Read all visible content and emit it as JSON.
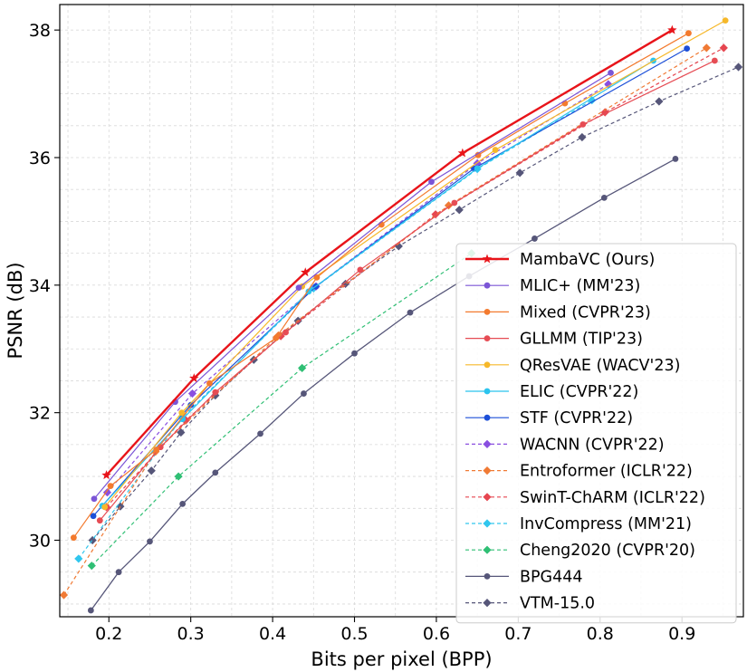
{
  "chart_data": {
    "type": "line",
    "title": "",
    "xlabel": "Bits per pixel (BPP)",
    "ylabel": "PSNR (dB)",
    "xlim": [
      0.14,
      0.975
    ],
    "ylim": [
      28.8,
      38.4
    ],
    "xticks": [
      0.2,
      0.3,
      0.4,
      0.5,
      0.6,
      0.7,
      0.8,
      0.9
    ],
    "xtick_labels": [
      "0.2",
      "0.3",
      "0.4",
      "0.5",
      "0.6",
      "0.7",
      "0.8",
      "0.9"
    ],
    "yticks": [
      30,
      32,
      34,
      36,
      38
    ],
    "ytick_labels": [
      "30",
      "32",
      "34",
      "36",
      "38"
    ],
    "grid": true,
    "legend_position": "lower-right",
    "series": [
      {
        "name": "MambaVC (Ours)",
        "color": "#e8141a",
        "marker": "star",
        "dashed": false,
        "width": 2.4,
        "x": [
          0.197,
          0.304,
          0.44,
          0.632,
          0.888
        ],
        "y": [
          31.02,
          32.54,
          34.2,
          36.07,
          38.0
        ]
      },
      {
        "name": "MLIC+ (MM'23)",
        "color": "#7b55d6",
        "marker": "circle",
        "dashed": false,
        "width": 1.2,
        "x": [
          0.182,
          0.281,
          0.432,
          0.594,
          0.813
        ],
        "y": [
          30.65,
          32.17,
          33.96,
          35.62,
          37.33
        ]
      },
      {
        "name": "Mixed (CVPR'23)",
        "color": "#f37a2e",
        "marker": "circle",
        "dashed": false,
        "width": 1.2,
        "x": [
          0.157,
          0.202,
          0.258,
          0.323,
          0.404,
          0.454,
          0.533,
          0.651,
          0.757,
          0.908
        ],
        "y": [
          30.04,
          30.85,
          31.42,
          32.46,
          33.17,
          34.12,
          34.95,
          36.04,
          36.85,
          37.95
        ]
      },
      {
        "name": "GLLMM (TIP'23)",
        "color": "#e64c54",
        "marker": "circle",
        "dashed": false,
        "width": 1.2,
        "x": [
          0.189,
          0.263,
          0.33,
          0.416,
          0.507,
          0.622,
          0.779,
          0.94
        ],
        "y": [
          30.31,
          31.46,
          32.32,
          33.26,
          34.24,
          35.29,
          36.52,
          37.52
        ]
      },
      {
        "name": "QResVAE (WACV'23)",
        "color": "#f6b82a",
        "marker": "circle",
        "dashed": false,
        "width": 1.2,
        "x": [
          0.195,
          0.289,
          0.436,
          0.672,
          0.953
        ],
        "y": [
          30.52,
          32.0,
          33.98,
          36.12,
          38.15
        ]
      },
      {
        "name": "ELIC (CVPR'22)",
        "color": "#2bc4ee",
        "marker": "circle",
        "dashed": false,
        "width": 1.2,
        "x": [
          0.192,
          0.29,
          0.444,
          0.65,
          0.865
        ],
        "y": [
          30.54,
          31.9,
          33.9,
          35.83,
          37.52
        ]
      },
      {
        "name": "STF (CVPR'22)",
        "color": "#1c4fd8",
        "marker": "circle",
        "dashed": false,
        "width": 1.2,
        "x": [
          0.181,
          0.3,
          0.453,
          0.646,
          0.906
        ],
        "y": [
          30.38,
          32.12,
          33.98,
          35.83,
          37.71
        ]
      },
      {
        "name": "WACNN (CVPR'22)",
        "color": "#8a4fe0",
        "marker": "diamond",
        "dashed": true,
        "width": 1.2,
        "x": [
          0.198,
          0.302,
          0.453,
          0.65,
          0.81
        ],
        "y": [
          30.75,
          32.3,
          33.98,
          35.91,
          37.15
        ]
      },
      {
        "name": "Entroformer (ICLR'22)",
        "color": "#f07a34",
        "marker": "diamond",
        "dashed": true,
        "width": 1.2,
        "x": [
          0.145,
          0.257,
          0.407,
          0.615,
          0.93
        ],
        "y": [
          29.14,
          31.39,
          33.21,
          35.25,
          37.72
        ]
      },
      {
        "name": "SwinT-ChARM (ICLR'22)",
        "color": "#e64650",
        "marker": "diamond",
        "dashed": true,
        "width": 1.2,
        "x": [
          0.197,
          0.294,
          0.41,
          0.599,
          0.806,
          0.951
        ],
        "y": [
          30.52,
          31.88,
          33.2,
          35.11,
          36.71,
          37.72
        ]
      },
      {
        "name": "InvCompress (MM'21)",
        "color": "#30c6ee",
        "marker": "diamond",
        "dashed": true,
        "width": 1.2,
        "x": [
          0.163,
          0.29,
          0.45,
          0.65,
          0.79
        ],
        "y": [
          29.71,
          31.93,
          33.95,
          35.82,
          36.9
        ]
      },
      {
        "name": "Cheng2020 (CVPR'20)",
        "color": "#2fbf74",
        "marker": "diamond",
        "dashed": true,
        "width": 1.2,
        "x": [
          0.179,
          0.285,
          0.436,
          0.643
        ],
        "y": [
          29.6,
          31.0,
          32.7,
          34.5
        ]
      },
      {
        "name": "BPG444",
        "color": "#565679",
        "marker": "circle",
        "dashed": false,
        "width": 1.3,
        "x": [
          0.178,
          0.212,
          0.25,
          0.29,
          0.33,
          0.385,
          0.438,
          0.5,
          0.568,
          0.64,
          0.72,
          0.805,
          0.892
        ],
        "y": [
          28.9,
          29.5,
          29.98,
          30.57,
          31.06,
          31.67,
          32.3,
          32.93,
          33.57,
          34.14,
          34.73,
          35.37,
          35.98
        ]
      },
      {
        "name": "VTM-15.0",
        "color": "#565679",
        "marker": "diamond",
        "dashed": true,
        "width": 1.2,
        "x": [
          0.18,
          0.214,
          0.252,
          0.288,
          0.33,
          0.377,
          0.431,
          0.489,
          0.554,
          0.628,
          0.702,
          0.778,
          0.872,
          0.969
        ],
        "y": [
          30.0,
          30.53,
          31.09,
          31.69,
          32.27,
          32.83,
          33.44,
          34.02,
          34.61,
          35.18,
          35.76,
          36.32,
          36.88,
          37.42
        ]
      }
    ]
  }
}
